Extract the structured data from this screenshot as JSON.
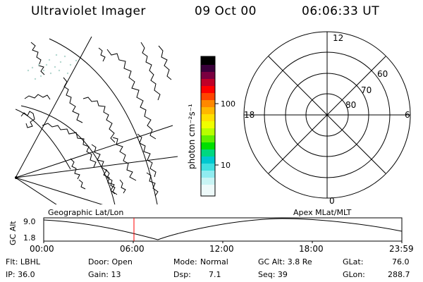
{
  "header": {
    "title": "Ultraviolet Imager",
    "date": "09 Oct 00",
    "time": "06:06:33 UT"
  },
  "colorbar": {
    "unit": "photon cm⁻²s⁻¹",
    "ticks": [
      "100",
      "10"
    ]
  },
  "polar_plot": {
    "mlt_labels": [
      "12",
      "18",
      "6",
      "0"
    ],
    "lat_labels": [
      "60",
      "70",
      "80"
    ]
  },
  "panel_labels": {
    "left": "Geographic Lat/Lon",
    "right": "Apex MLat/MLT"
  },
  "altitude_plot": {
    "ylabel": "GC Alt",
    "yticks": [
      "9.0",
      "1.8"
    ],
    "xticks": [
      "00:00",
      "06:00",
      "12:00",
      "18:00",
      "23:59"
    ]
  },
  "status": {
    "row1": {
      "flt": "Flt: LBHL",
      "door": "Door: Open",
      "mode_label": "Mode:",
      "mode_value": "Normal",
      "gcalt": "GC Alt: 3.8 Re",
      "glat_label": "GLat:",
      "glat_value": "76.0"
    },
    "row2": {
      "ip": "IP: 36.0",
      "gain": "Gain: 13",
      "dsp_label": "Dsp:",
      "dsp_value": "7.1",
      "seq": "Seq: 39",
      "glon_label": "GLon:",
      "glon_value": "288.7"
    }
  },
  "colors": {
    "time_marker": "#ff0000"
  }
}
